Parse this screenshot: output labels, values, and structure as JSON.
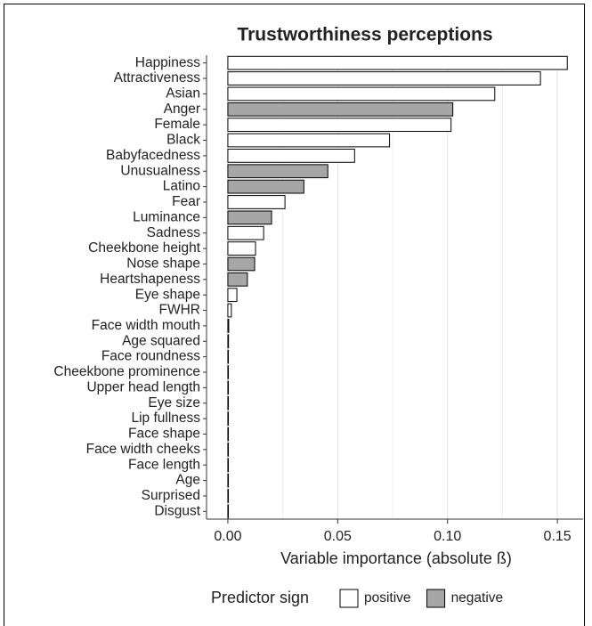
{
  "chart_data": {
    "type": "barh",
    "title": "Trustworthiness perceptions",
    "xlabel": "Variable importance (absolute ß)",
    "legend_title": "Predictor sign",
    "categories": [
      "Happiness",
      "Attractiveness",
      "Asian",
      "Anger",
      "Female",
      "Black",
      "Babyfacedness",
      "Unusualness",
      "Latino",
      "Fear",
      "Luminance",
      "Sadness",
      "Cheekbone height",
      "Nose shape",
      "Heartshapeness",
      "Eye shape",
      "FWHR",
      "Face width mouth",
      "Age squared",
      "Face roundness",
      "Cheekbone prominence",
      "Upper head length",
      "Eye size",
      "Lip fullness",
      "Face shape",
      "Face width cheeks",
      "Face length",
      "Age",
      "Surprised",
      "Disgust"
    ],
    "series": [
      {
        "name": "positive",
        "color": "#ffffff",
        "values": [
          0.1545,
          0.1423,
          0.1215,
          null,
          0.1016,
          0.0736,
          0.0577,
          null,
          null,
          0.026,
          null,
          0.0163,
          0.0126,
          null,
          null,
          0.0041,
          0.0016,
          0.0004,
          0.0003,
          0.0001,
          0.0001,
          0.0001,
          0.0001,
          0.0001,
          0.0001,
          0.0001,
          0.0001,
          0.0001,
          0.0001,
          0.0001
        ]
      },
      {
        "name": "negative",
        "color": "#a6a6a6",
        "values": [
          null,
          null,
          null,
          0.1024,
          null,
          null,
          null,
          0.0455,
          0.0346,
          null,
          0.0199,
          null,
          null,
          0.0122,
          0.0089,
          null,
          null,
          null,
          null,
          null,
          null,
          null,
          null,
          null,
          null,
          null,
          null,
          null,
          null,
          null
        ]
      }
    ],
    "xlim": [
      -0.0097,
      0.1617
    ],
    "xticks": [
      {
        "value": 0,
        "label": "0.00"
      },
      {
        "value": 0.05,
        "label": "0.05"
      },
      {
        "value": 0.1,
        "label": "0.10"
      },
      {
        "value": 0.15,
        "label": "0.15"
      }
    ],
    "minor_xticks": [
      0.025,
      0.075,
      0.125
    ],
    "grid": true,
    "legend": "bottom"
  }
}
